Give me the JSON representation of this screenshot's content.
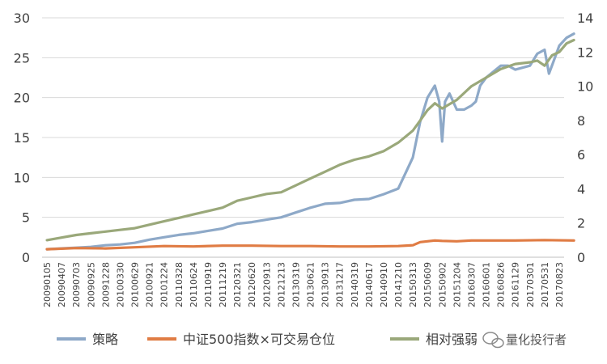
{
  "chart_data": {
    "type": "line",
    "title": "",
    "xlabel": "",
    "ylabel": "",
    "y_left": {
      "lim": [
        0,
        30
      ],
      "ticks": [
        0,
        5,
        10,
        15,
        20,
        25,
        30
      ]
    },
    "y_right": {
      "lim": [
        0,
        14
      ],
      "ticks": [
        0,
        2,
        4,
        6,
        8,
        10,
        12,
        14
      ]
    },
    "grid": "horizontal",
    "legend_position": "bottom",
    "x_tick_labels": [
      "20090105",
      "20090407",
      "20090703",
      "20090925",
      "20091228",
      "20100330",
      "20100629",
      "20100921",
      "20101224",
      "20110328",
      "20110624",
      "20110919",
      "20111219",
      "20120321",
      "20120620",
      "20120913",
      "20121213",
      "20130319",
      "20130621",
      "20130913",
      "20131217",
      "20140319",
      "20140617",
      "20140910",
      "20141210",
      "20150313",
      "20150609",
      "20150902",
      "20151204",
      "20160307",
      "20160601",
      "20160826",
      "20161129",
      "20170301",
      "20170531",
      "20170823"
    ],
    "series": [
      {
        "name": "策略",
        "axis": "left",
        "color": "#8EA9C8",
        "x": [
          0,
          1,
          2,
          3,
          4,
          5,
          6,
          7,
          8,
          9,
          10,
          11,
          12,
          13,
          14,
          15,
          16,
          17,
          18,
          19,
          20,
          21,
          22,
          23,
          24,
          25,
          25.5,
          26,
          26.5,
          26.8,
          27,
          27.2,
          27.5,
          28,
          28.5,
          29,
          29.3,
          29.6,
          30,
          31,
          31.5,
          32,
          33,
          33.5,
          34,
          34.3,
          34.6,
          35,
          35.5,
          36
        ],
        "values": [
          1.0,
          1.1,
          1.2,
          1.3,
          1.5,
          1.6,
          1.8,
          2.2,
          2.5,
          2.8,
          3.0,
          3.3,
          3.6,
          4.2,
          4.4,
          4.7,
          5.0,
          5.6,
          6.2,
          6.7,
          6.8,
          7.2,
          7.3,
          7.9,
          8.6,
          12.5,
          17.0,
          20.0,
          21.5,
          19.5,
          14.5,
          19.5,
          20.5,
          18.5,
          18.5,
          19.0,
          19.5,
          21.5,
          22.5,
          24.0,
          24.0,
          23.5,
          24.0,
          25.5,
          26.0,
          23.0,
          24.5,
          26.5,
          27.5,
          28.0
        ]
      },
      {
        "name": "中证500指数×可交易仓位",
        "axis": "left",
        "color": "#E07C44",
        "x": [
          0,
          2,
          4,
          6,
          8,
          10,
          12,
          14,
          16,
          18,
          20,
          22,
          24,
          25,
          25.5,
          26,
          26.5,
          27,
          28,
          29,
          30,
          32,
          34,
          36
        ],
        "values": [
          1.0,
          1.15,
          1.1,
          1.25,
          1.4,
          1.35,
          1.45,
          1.45,
          1.4,
          1.4,
          1.35,
          1.35,
          1.4,
          1.5,
          1.9,
          2.0,
          2.1,
          2.05,
          2.0,
          2.1,
          2.1,
          2.1,
          2.15,
          2.1
        ]
      },
      {
        "name": "相对强弱",
        "axis": "right",
        "color": "#9AA87A",
        "x": [
          0,
          1,
          2,
          3,
          4,
          5,
          6,
          7,
          8,
          9,
          10,
          11,
          12,
          13,
          14,
          15,
          16,
          17,
          18,
          19,
          20,
          21,
          22,
          23,
          24,
          25,
          25.5,
          26,
          26.5,
          27,
          28,
          29,
          30,
          31,
          32,
          33,
          33.5,
          34,
          34.5,
          35,
          35.5,
          36
        ],
        "values": [
          1.0,
          1.15,
          1.3,
          1.4,
          1.5,
          1.6,
          1.7,
          1.9,
          2.1,
          2.3,
          2.5,
          2.7,
          2.9,
          3.3,
          3.5,
          3.7,
          3.8,
          4.2,
          4.6,
          5.0,
          5.4,
          5.7,
          5.9,
          6.2,
          6.7,
          7.4,
          8.0,
          8.6,
          9.0,
          8.7,
          9.2,
          10.0,
          10.5,
          11.0,
          11.3,
          11.4,
          11.5,
          11.2,
          11.8,
          12.0,
          12.5,
          12.7
        ]
      }
    ]
  },
  "watermark": "量化投行者"
}
